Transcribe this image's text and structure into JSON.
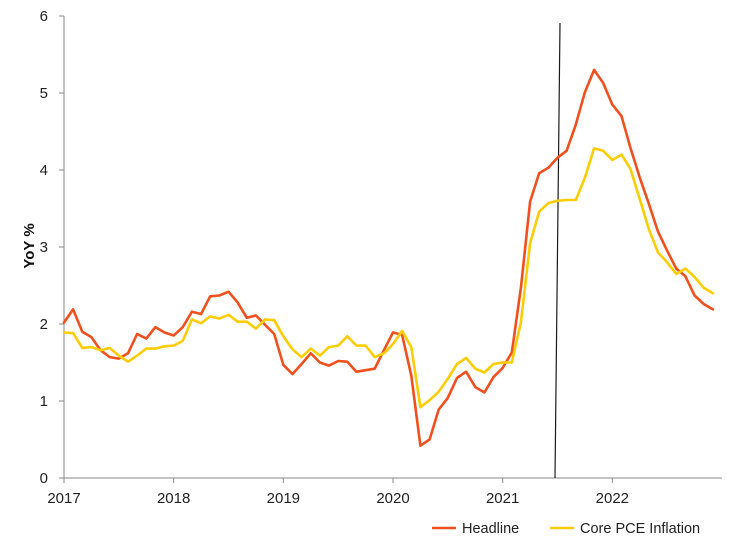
{
  "chart_data": {
    "type": "line",
    "title": "",
    "xlabel": "",
    "ylabel": "YoY %",
    "ylim": [
      0,
      6
    ],
    "y_ticks": [
      0,
      1,
      2,
      3,
      4,
      5,
      6
    ],
    "x_range": [
      "2017-01",
      "2022-12"
    ],
    "x_tick_labels": [
      "2017",
      "2018",
      "2019",
      "2020",
      "2021",
      "2022"
    ],
    "grid": false,
    "legend_position": "bottom-right",
    "annotations": [
      {
        "type": "vertical-line",
        "x": "2021-07",
        "color": "#1a1a1a"
      }
    ],
    "x": [
      "2017-01",
      "2017-02",
      "2017-03",
      "2017-04",
      "2017-05",
      "2017-06",
      "2017-07",
      "2017-08",
      "2017-09",
      "2017-10",
      "2017-11",
      "2017-12",
      "2018-01",
      "2018-02",
      "2018-03",
      "2018-04",
      "2018-05",
      "2018-06",
      "2018-07",
      "2018-08",
      "2018-09",
      "2018-10",
      "2018-11",
      "2018-12",
      "2019-01",
      "2019-02",
      "2019-03",
      "2019-04",
      "2019-05",
      "2019-06",
      "2019-07",
      "2019-08",
      "2019-09",
      "2019-10",
      "2019-11",
      "2019-12",
      "2020-01",
      "2020-02",
      "2020-03",
      "2020-04",
      "2020-05",
      "2020-06",
      "2020-07",
      "2020-08",
      "2020-09",
      "2020-10",
      "2020-11",
      "2020-12",
      "2021-01",
      "2021-02",
      "2021-03",
      "2021-04",
      "2021-05",
      "2021-06",
      "2021-07",
      "2021-08",
      "2021-09",
      "2021-10",
      "2021-11",
      "2021-12",
      "2022-01",
      "2022-02",
      "2022-03",
      "2022-04",
      "2022-05",
      "2022-06",
      "2022-07",
      "2022-08",
      "2022-09",
      "2022-10",
      "2022-11",
      "2022-12"
    ],
    "series": [
      {
        "name": "Headline",
        "color": "#f0501e",
        "values": [
          2.02,
          2.19,
          1.9,
          1.83,
          1.66,
          1.57,
          1.55,
          1.62,
          1.87,
          1.81,
          1.96,
          1.89,
          1.85,
          1.96,
          2.16,
          2.13,
          2.36,
          2.37,
          2.42,
          2.28,
          2.08,
          2.11,
          1.99,
          1.87,
          1.47,
          1.35,
          1.48,
          1.62,
          1.5,
          1.46,
          1.52,
          1.51,
          1.38,
          1.4,
          1.42,
          1.66,
          1.89,
          1.86,
          1.33,
          0.42,
          0.5,
          0.89,
          1.04,
          1.3,
          1.38,
          1.18,
          1.11,
          1.31,
          1.43,
          1.63,
          2.47,
          3.59,
          3.96,
          4.03,
          4.16,
          4.25,
          4.59,
          5.01,
          5.3,
          5.13,
          4.85,
          4.7,
          4.28,
          3.9,
          3.56,
          3.2,
          2.95,
          2.72,
          2.62,
          2.37,
          2.26,
          2.19
        ]
      },
      {
        "name": "Core PCE Inflation",
        "color": "#fccd05",
        "values": [
          1.89,
          1.88,
          1.69,
          1.7,
          1.66,
          1.69,
          1.59,
          1.51,
          1.59,
          1.68,
          1.68,
          1.71,
          1.72,
          1.78,
          2.06,
          2.01,
          2.1,
          2.07,
          2.12,
          2.03,
          2.03,
          1.94,
          2.06,
          2.05,
          1.84,
          1.67,
          1.57,
          1.68,
          1.59,
          1.7,
          1.72,
          1.84,
          1.72,
          1.72,
          1.57,
          1.62,
          1.74,
          1.91,
          1.7,
          0.92,
          1.01,
          1.12,
          1.29,
          1.48,
          1.56,
          1.42,
          1.37,
          1.48,
          1.5,
          1.5,
          2.02,
          3.05,
          3.46,
          3.57,
          3.6,
          3.61,
          3.61,
          3.9,
          4.28,
          4.25,
          4.13,
          4.2,
          4.01,
          3.62,
          3.23,
          2.93,
          2.8,
          2.65,
          2.72,
          2.61,
          2.47,
          2.4
        ]
      }
    ]
  }
}
